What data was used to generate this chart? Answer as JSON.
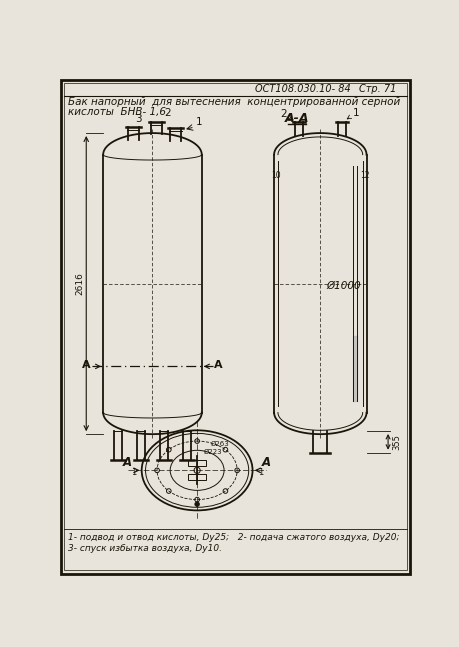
{
  "bg_color": "#e8e4dc",
  "line_color": "#1a1508",
  "title_line1": "Бак напорный  для вытеснения  концентрированной серной",
  "title_line2": "кислоты  БНВ- 1,6",
  "header_right": "ОСТ108.030.10- 84",
  "header_page": "Стр. 71",
  "section_label": "А-А",
  "dim_height": "2616",
  "dim_diam": "Ø1000",
  "dim_bottom": "355",
  "legend_line1": "1- подвод и отвод кислоты, Dy25;   2- подача сжатого воздуха, Dy20;",
  "legend_line2": "3- спуск избытка воздуха, Dy10."
}
